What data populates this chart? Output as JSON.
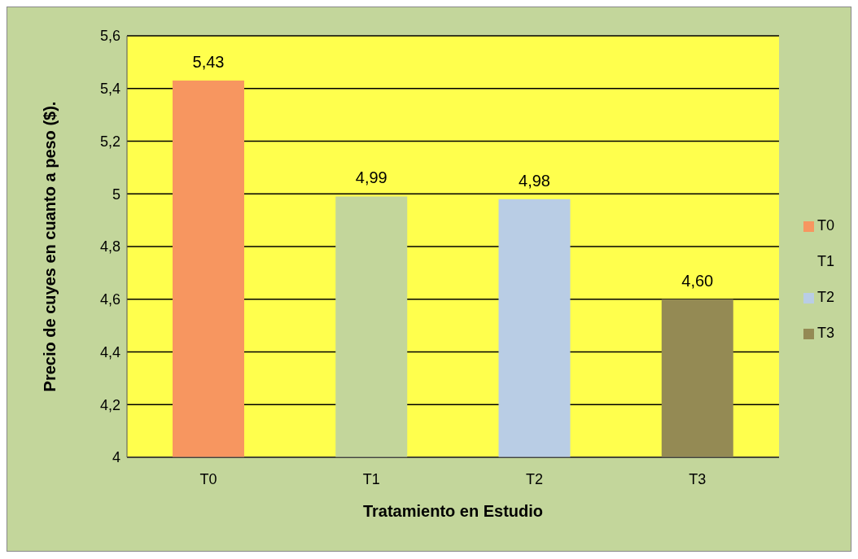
{
  "chart_data": {
    "type": "bar",
    "xlabel": "Tratamiento  en  Estudio",
    "ylabel": "Precio de cuyes  en cuanto a peso ($).",
    "categories": [
      "T0",
      "T1",
      "T2",
      "T3"
    ],
    "series": [
      {
        "name": "T0",
        "color": "#f79660",
        "values": [
          5.43,
          null,
          null,
          null
        ],
        "value_labels": [
          "5,43",
          null,
          null,
          null
        ]
      },
      {
        "name": "T1",
        "color": "#c3d69b",
        "values": [
          null,
          4.99,
          null,
          null
        ],
        "value_labels": [
          null,
          "4,99",
          null,
          null
        ]
      },
      {
        "name": "T2",
        "color": "#b9cde5",
        "values": [
          null,
          null,
          4.98,
          null
        ],
        "value_labels": [
          null,
          null,
          "4,98",
          null
        ]
      },
      {
        "name": "T3",
        "color": "#948a54",
        "values": [
          null,
          null,
          null,
          4.6
        ],
        "value_labels": [
          null,
          null,
          null,
          "4,60"
        ]
      }
    ],
    "stacked": true,
    "ylim": [
      4,
      5.6
    ],
    "yticks": [
      4,
      {
        "value": 4.2,
        "label": "4,2"
      },
      {
        "value": 4.4,
        "label": "4,4"
      },
      {
        "value": 4.6,
        "label": "4,6"
      },
      {
        "value": 4.8,
        "label": "4,8"
      },
      5,
      {
        "value": 5.2,
        "label": "5,2"
      },
      {
        "value": 5.4,
        "label": "5,4"
      },
      {
        "value": 5.6,
        "label": "5,6"
      }
    ],
    "grid": "y",
    "legend": "right"
  }
}
